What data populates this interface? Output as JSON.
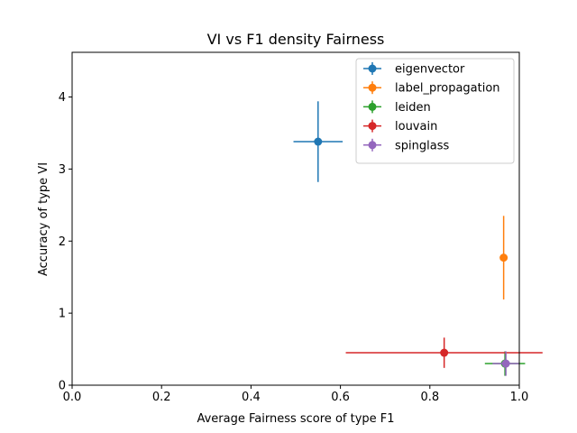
{
  "chart_data": {
    "type": "scatter",
    "title": "VI vs F1 density Fairness",
    "xlabel": "Average Fairness score of type F1",
    "ylabel": "Accuracy of type VI",
    "xlim": [
      0.0,
      1.0
    ],
    "ylim": [
      0.0,
      4.62
    ],
    "xticks": [
      "0.0",
      "0.2",
      "0.4",
      "0.6",
      "0.8",
      "1.0"
    ],
    "yticks": [
      "0",
      "1",
      "2",
      "3",
      "4"
    ],
    "grid": false,
    "legend_position": "top-right",
    "series": [
      {
        "name": "eigenvector",
        "color": "#1f77b4",
        "x": 0.55,
        "y": 3.38,
        "xerr": 0.055,
        "yerr": 0.56
      },
      {
        "name": "label_propagation",
        "color": "#ff7f0e",
        "x": 0.965,
        "y": 1.77,
        "xerr": 0.004,
        "yerr": 0.58
      },
      {
        "name": "leiden",
        "color": "#2ca02c",
        "x": 0.968,
        "y": 0.3,
        "xerr": 0.045,
        "yerr": 0.17
      },
      {
        "name": "louvain",
        "color": "#d62728",
        "x": 0.832,
        "y": 0.45,
        "xerr": 0.22,
        "yerr": 0.21
      },
      {
        "name": "spinglass",
        "color": "#9467bd",
        "x": 0.97,
        "y": 0.3,
        "xerr": 0.03,
        "yerr": 0.17
      }
    ]
  }
}
